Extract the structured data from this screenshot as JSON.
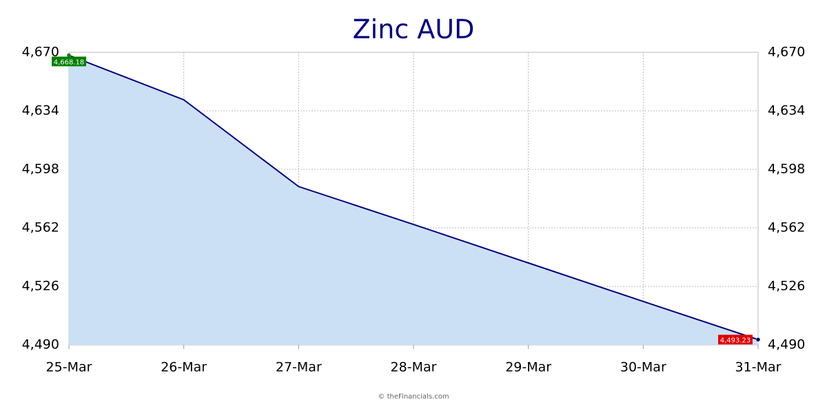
{
  "chart_data": {
    "type": "area",
    "title": "Zinc AUD",
    "footer": "© theFinancials.com",
    "categories": [
      "25-Mar",
      "26-Mar",
      "27-Mar",
      "28-Mar",
      "29-Mar",
      "30-Mar",
      "31-Mar"
    ],
    "values": [
      4668.18,
      4640.8,
      4587.4,
      4564.1,
      4540.4,
      4516.7,
      4493.23
    ],
    "value_labels": [
      "4,668.18",
      null,
      null,
      null,
      null,
      null,
      "4,493.23"
    ],
    "color": "#000080",
    "fill_color": "#cce0f5",
    "first_label_color": "#008000",
    "last_label_color": "#e00000",
    "ylim": [
      4490,
      4670
    ],
    "yticks": [
      {
        "value": 4490,
        "label": "4,490"
      },
      {
        "value": 4526,
        "label": "4,526"
      },
      {
        "value": 4562,
        "label": "4,562"
      },
      {
        "value": 4598,
        "label": "4,598"
      },
      {
        "value": 4634,
        "label": "4,634"
      },
      {
        "value": 4670,
        "label": "4,670"
      }
    ],
    "grid": true
  }
}
